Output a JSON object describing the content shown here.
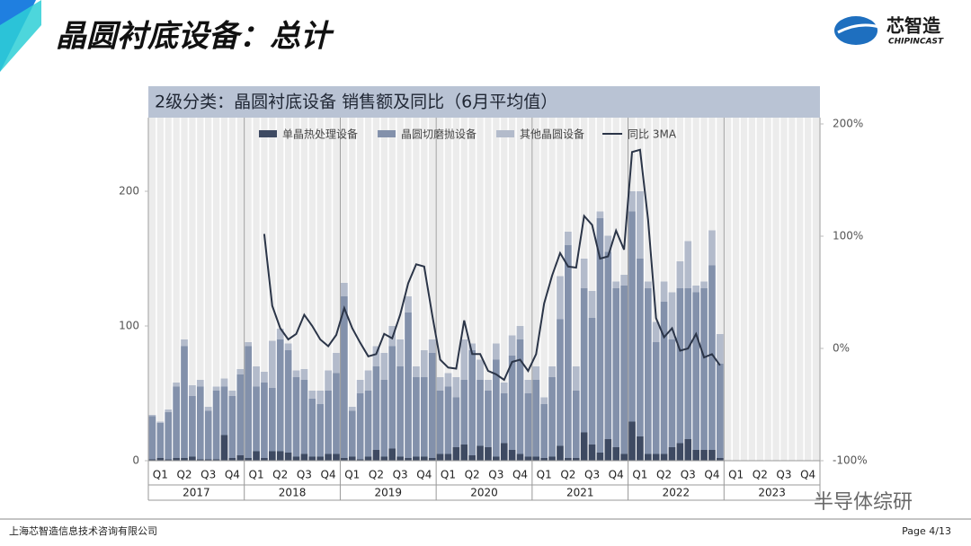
{
  "header": {
    "title": "晶圆衬底设备：总计",
    "logo": "芯智造",
    "logo_sub": "CHIPINCAST"
  },
  "footer": {
    "company": "上海芯智造信息技术咨询有限公司",
    "page": "Page 4/13",
    "watermark": "半导体综研"
  },
  "chart_data": {
    "type": "bar",
    "title": "2级分类：晶圆衬底设备 销售额及同比（6月平均值）",
    "stacked": true,
    "quarters": [
      "Q1",
      "Q2",
      "Q3",
      "Q4",
      "Q1",
      "Q2",
      "Q3",
      "Q4",
      "Q1",
      "Q2",
      "Q3",
      "Q4",
      "Q1",
      "Q2",
      "Q3",
      "Q4",
      "Q1",
      "Q2",
      "Q3",
      "Q4",
      "Q1",
      "Q2",
      "Q3",
      "Q4",
      "Q1",
      "Q2",
      "Q3",
      "Q4"
    ],
    "years": [
      "2017",
      "2018",
      "2019",
      "2020",
      "2021",
      "2022",
      "2023"
    ],
    "series": [
      {
        "name": "单晶热处理设备",
        "color": "#3e4a62",
        "values": [
          1,
          2,
          1,
          2,
          2,
          3,
          1,
          1,
          1,
          19,
          2,
          4,
          2,
          7,
          2,
          7,
          7,
          6,
          3,
          5,
          3,
          3,
          5,
          5,
          2,
          3,
          1,
          3,
          8,
          3,
          9,
          3,
          2,
          3,
          3,
          2,
          5,
          5,
          10,
          12,
          4,
          11,
          10,
          3,
          13,
          8,
          5,
          3,
          3,
          2,
          3,
          11,
          2,
          2,
          21,
          12,
          6,
          16,
          10,
          5,
          29,
          18,
          5,
          5,
          5,
          10,
          13,
          16,
          8,
          8,
          8,
          2,
          null,
          null,
          null,
          null,
          null,
          null,
          null,
          null,
          null,
          null,
          null,
          null
        ]
      },
      {
        "name": "晶圆切磨抛设备",
        "color": "#8391ab",
        "values": [
          32,
          26,
          35,
          53,
          83,
          45,
          54,
          36,
          51,
          36,
          46,
          60,
          83,
          48,
          56,
          47,
          83,
          76,
          59,
          55,
          43,
          39,
          47,
          60,
          120,
          34,
          49,
          49,
          62,
          57,
          76,
          67,
          108,
          59,
          59,
          78,
          47,
          50,
          37,
          48,
          78,
          49,
          42,
          72,
          37,
          70,
          85,
          47,
          57,
          40,
          59,
          94,
          158,
          50,
          107,
          94,
          174,
          139,
          118,
          125,
          156,
          132,
          123,
          83,
          113,
          80,
          115,
          112,
          117,
          120,
          137,
          70,
          null,
          null,
          null,
          null,
          null,
          null,
          null,
          null,
          null,
          null,
          null,
          null
        ]
      },
      {
        "name": "其他晶圆设备",
        "color": "#b3bbcb",
        "values": [
          1,
          1,
          2,
          3,
          5,
          8,
          5,
          3,
          3,
          6,
          4,
          4,
          3,
          15,
          8,
          35,
          8,
          5,
          5,
          8,
          6,
          10,
          15,
          15,
          10,
          3,
          10,
          15,
          15,
          20,
          15,
          20,
          12,
          8,
          20,
          10,
          10,
          10,
          15,
          30,
          5,
          15,
          8,
          12,
          8,
          15,
          10,
          10,
          10,
          5,
          8,
          32,
          10,
          18,
          22,
          20,
          5,
          12,
          5,
          8,
          15,
          50,
          5,
          15,
          15,
          35,
          20,
          35,
          5,
          5,
          26,
          22,
          null,
          null,
          null,
          null,
          null,
          null,
          null,
          null,
          null,
          null,
          null,
          null
        ]
      },
      {
        "name": "同比 3MA",
        "type": "line",
        "axis": "y2",
        "color": "#2b3548",
        "values": [
          null,
          null,
          null,
          null,
          null,
          null,
          null,
          null,
          null,
          null,
          null,
          null,
          null,
          null,
          102,
          38,
          18,
          8,
          13,
          30,
          20,
          8,
          2,
          12,
          36,
          18,
          5,
          -7,
          -5,
          13,
          9,
          30,
          58,
          75,
          73,
          30,
          -10,
          -17,
          -18,
          25,
          -5,
          -5,
          -20,
          -23,
          -28,
          -12,
          -10,
          -20,
          -5,
          40,
          65,
          85,
          73,
          72,
          118,
          110,
          80,
          82,
          105,
          88,
          175,
          177,
          115,
          27,
          10,
          18,
          -2,
          0,
          13,
          -8,
          -5,
          -15,
          null,
          null,
          null,
          null,
          null,
          null,
          null,
          null,
          null,
          null,
          null,
          null
        ]
      }
    ],
    "ylim": [
      0,
      250
    ],
    "yticks": [
      0,
      100,
      200
    ],
    "y2lim": [
      -100,
      200
    ],
    "y2ticks": [
      {
        "value": -100,
        "label": "-100%"
      },
      {
        "value": 0,
        "label": "0%"
      },
      {
        "value": 100,
        "label": "100%"
      },
      {
        "value": 200,
        "label": "200%"
      }
    ]
  }
}
